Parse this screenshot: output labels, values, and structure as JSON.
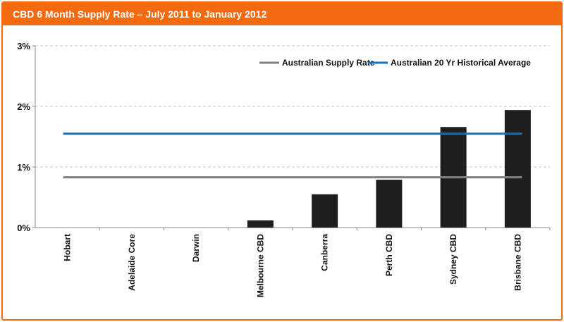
{
  "header": {
    "title": "CBD 6 Month Supply Rate – July 2011 to January 2012"
  },
  "chart_data": {
    "type": "bar",
    "title": "CBD 6 Month Supply Rate – July 2011 to January 2012",
    "xlabel": "",
    "ylabel": "",
    "categories": [
      "Hobart",
      "Adelaide Core",
      "Darwin",
      "Melbourne CBD",
      "Canberra",
      "Perth CBD",
      "Sydney CBD",
      "Brisbane CBD"
    ],
    "values": [
      0,
      0,
      0,
      0.12,
      0.55,
      0.79,
      1.66,
      1.94
    ],
    "ylim": [
      0,
      3
    ],
    "yticks": [
      0,
      1,
      2,
      3
    ],
    "ytick_labels": [
      "0%",
      "1%",
      "2%",
      "3%"
    ],
    "grid": true,
    "legend_position": "top-right",
    "reference_lines": [
      {
        "name": "Australian Supply Rate",
        "value": 0.83,
        "color": "#808080"
      },
      {
        "name": "Australian 20 Yr Historical Average",
        "value": 1.55,
        "color": "#1b6fb5"
      }
    ],
    "bar_color": "#1e1e1e"
  }
}
